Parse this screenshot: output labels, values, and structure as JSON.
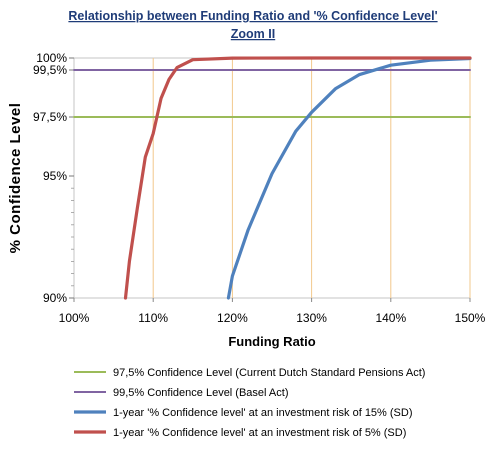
{
  "chart_data": {
    "type": "line",
    "title": "Relationship between Funding Ratio and '% Confidence Level'",
    "subtitle": "Zoom II",
    "xlabel": "Funding Ratio",
    "ylabel": "% Confidence Level",
    "xlim": [
      1.0,
      1.5
    ],
    "ylim": [
      0.9,
      1.0
    ],
    "y_scale": "nonlinear (stretched toward 100%)",
    "grid": "vertical gridlines",
    "x_ticks": [
      {
        "value": 1.0,
        "label": "100%"
      },
      {
        "value": 1.1,
        "label": "110%"
      },
      {
        "value": 1.2,
        "label": "120%"
      },
      {
        "value": 1.3,
        "label": "130%"
      },
      {
        "value": 1.4,
        "label": "140%"
      },
      {
        "value": 1.5,
        "label": "150%"
      }
    ],
    "y_ticks": [
      {
        "value": 0.9,
        "label": "90%"
      },
      {
        "value": 0.95,
        "label": "95%"
      },
      {
        "value": 0.975,
        "label": "97,5%"
      },
      {
        "value": 0.995,
        "label": "99,5%"
      },
      {
        "value": 1.0,
        "label": "100%"
      }
    ],
    "legend_position": "bottom",
    "series": [
      {
        "name": "97,5% Confidence Level (Current Dutch Standard Pensions Act)",
        "color": "#9bbb59",
        "x": [
          1.0,
          1.5
        ],
        "y": [
          0.975,
          0.975
        ]
      },
      {
        "name": "99,5% Confidence Level (Basel Act)",
        "color": "#8064a2",
        "x": [
          1.0,
          1.5
        ],
        "y": [
          0.995,
          0.995
        ]
      },
      {
        "name": "1-year '% Confidence level' at an investment risk of 15% (SD)",
        "color": "#4f81bd",
        "x": [
          1.195,
          1.2,
          1.22,
          1.25,
          1.28,
          1.3,
          1.33,
          1.36,
          1.4,
          1.45,
          1.5
        ],
        "y": [
          0.9,
          0.909,
          0.928,
          0.951,
          0.969,
          0.977,
          0.987,
          0.993,
          0.997,
          0.9991,
          0.9998
        ]
      },
      {
        "name": "1-year '% Confidence level' at an investment risk of 5% (SD)",
        "color": "#c0504d",
        "x": [
          1.065,
          1.07,
          1.08,
          1.09,
          1.1,
          1.11,
          1.12,
          1.13,
          1.15,
          1.2,
          1.3,
          1.4,
          1.5
        ],
        "y": [
          0.9,
          0.915,
          0.937,
          0.958,
          0.968,
          0.983,
          0.991,
          0.996,
          0.9993,
          0.99995,
          1.0,
          1.0,
          1.0
        ]
      }
    ]
  }
}
